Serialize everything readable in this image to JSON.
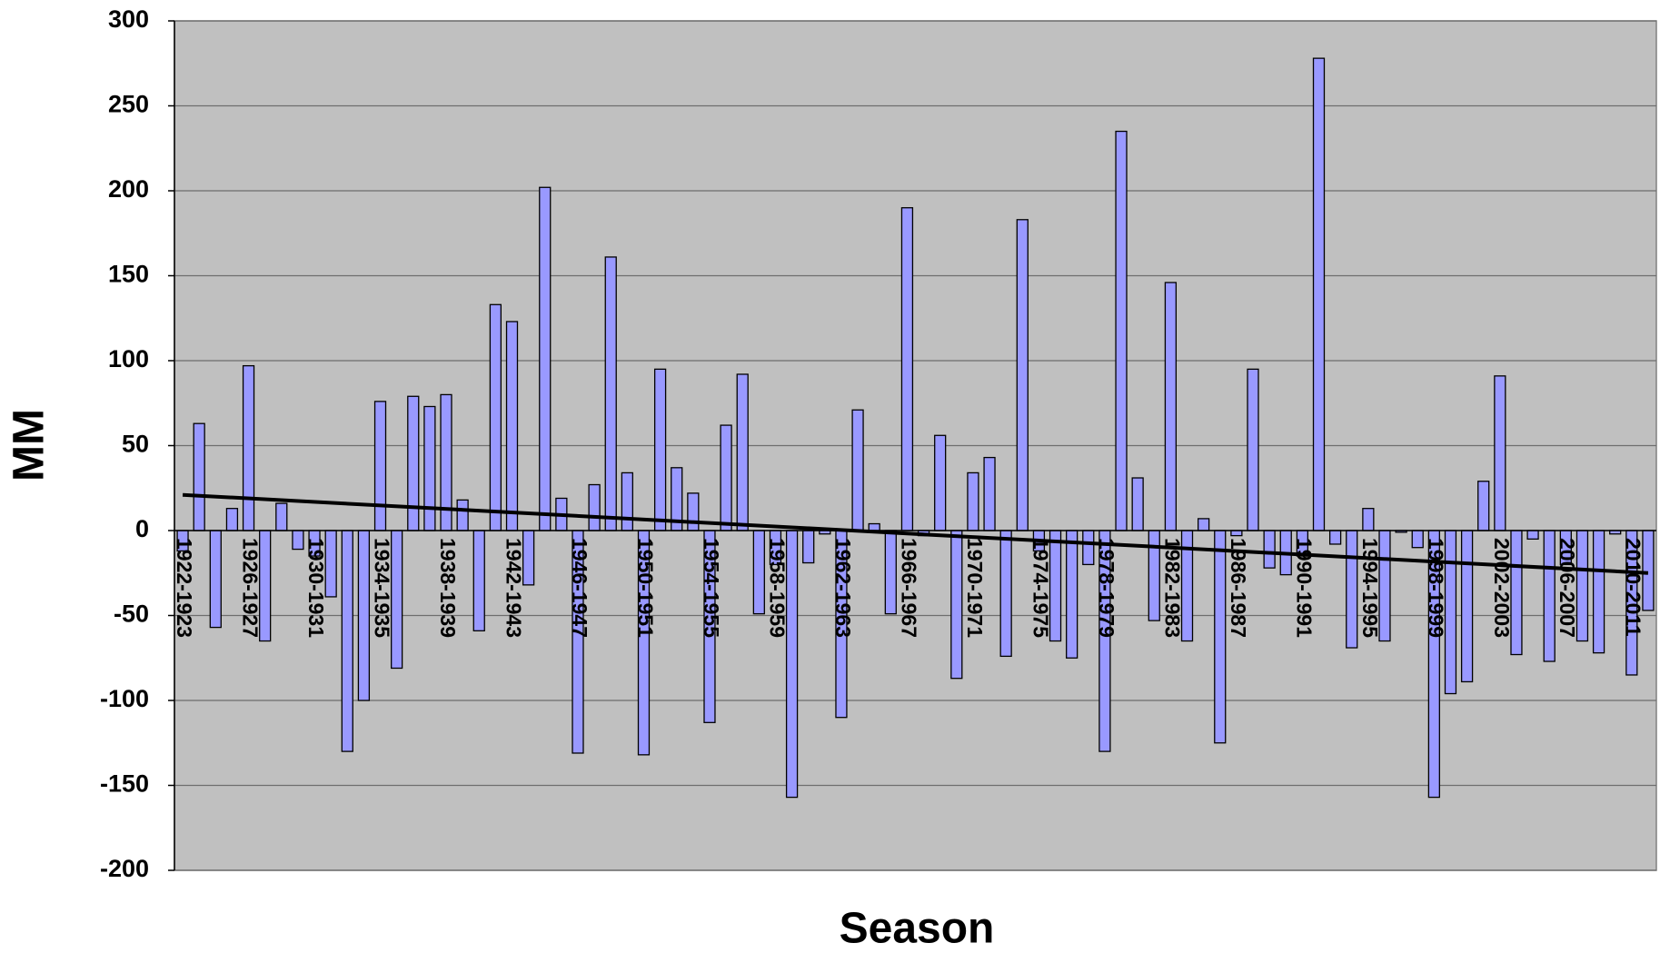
{
  "chart_data": {
    "type": "bar",
    "x_label": "Season",
    "y_label": "MM",
    "categories": [
      "1922-1923",
      null,
      null,
      null,
      "1926-1927",
      null,
      null,
      null,
      "1930-1931",
      null,
      null,
      null,
      "1934-1935",
      null,
      null,
      null,
      "1938-1939",
      null,
      null,
      null,
      "1942-1943",
      null,
      null,
      null,
      "1946-1947",
      null,
      null,
      null,
      "1950-1951",
      null,
      null,
      null,
      "1954-1955",
      null,
      null,
      null,
      "1958-1959",
      null,
      null,
      null,
      "1962-1963",
      null,
      null,
      null,
      "1966-1967",
      null,
      null,
      null,
      "1970-1971",
      null,
      null,
      null,
      "1974-1975",
      null,
      null,
      null,
      "1978-1979",
      null,
      null,
      null,
      "1982-1983",
      null,
      null,
      null,
      "1986-1987",
      null,
      null,
      null,
      "1990-1991",
      null,
      null,
      null,
      "1994-1995",
      null,
      null,
      null,
      "1998-1999",
      null,
      null,
      null,
      "2002-2003",
      null,
      null,
      null,
      "2006-2007",
      null,
      null,
      null,
      "2010-2011",
      null
    ],
    "values": [
      -12,
      63,
      -57,
      13,
      97,
      -65,
      16,
      -11,
      -15,
      -39,
      -130,
      -100,
      76,
      -81,
      79,
      73,
      80,
      18,
      -59,
      133,
      123,
      -32,
      202,
      19,
      -131,
      27,
      161,
      34,
      -132,
      95,
      37,
      22,
      -113,
      62,
      92,
      -49,
      -20,
      -157,
      -19,
      -2,
      -110,
      71,
      4,
      -49,
      190,
      -3,
      56,
      -87,
      34,
      43,
      -74,
      183,
      -12,
      -65,
      -75,
      -20,
      -130,
      235,
      31,
      -53,
      146,
      -65,
      7,
      -125,
      -3,
      95,
      -22,
      -26,
      -15,
      278,
      -8,
      -69,
      13,
      -65,
      -1,
      -10,
      -157,
      -96,
      -89,
      29,
      91,
      -73,
      -5,
      -77,
      -20,
      -65,
      -72,
      -2,
      -85,
      -47
    ],
    "color": "#9999ff",
    "trendline": [
      21,
      -25
    ],
    "trendline_color": "#000000",
    "ylim": [
      -200,
      300
    ],
    "yticks": [
      -200,
      -150,
      -100,
      -50,
      0,
      50,
      100,
      150,
      200,
      250,
      300
    ],
    "grid": true
  }
}
